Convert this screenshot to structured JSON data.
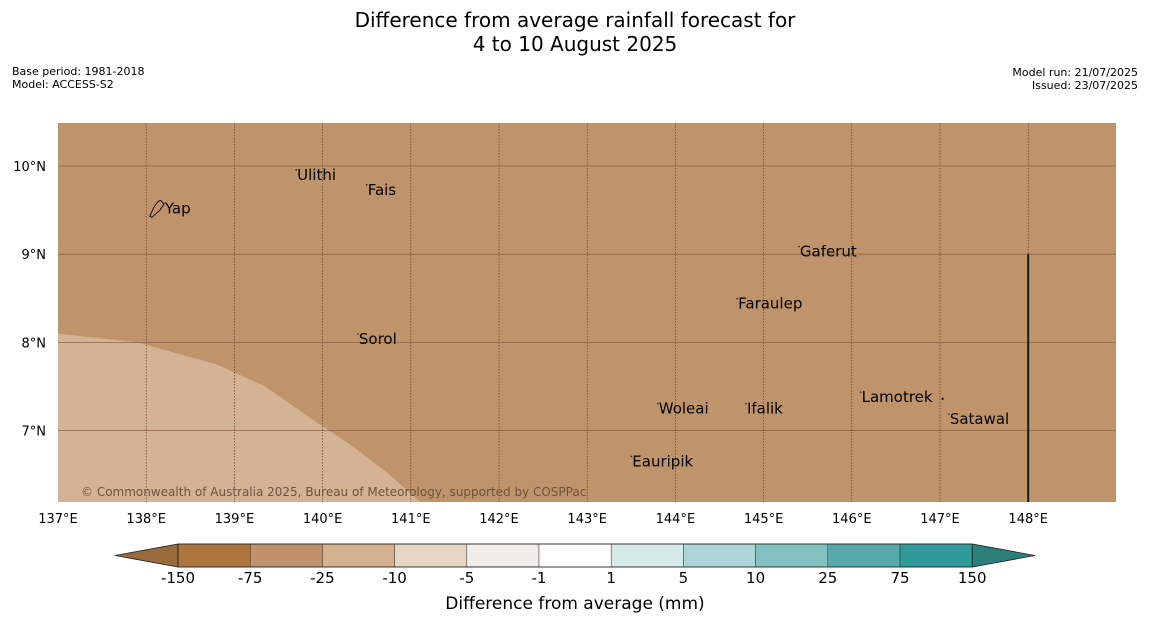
{
  "title": {
    "line1": "Difference from average rainfall forecast for",
    "line2": "4 to 10 August 2025"
  },
  "meta_left": {
    "base_period": "Base period: 1981-2018",
    "model": "Model: ACCESS-S2"
  },
  "meta_right": {
    "model_run": "Model run: 21/07/2025",
    "issued": "Issued: 23/07/2025"
  },
  "map": {
    "lon_range": [
      137,
      149
    ],
    "lat_range": [
      6.2,
      10.5
    ],
    "lon_ticks": [
      {
        "value": 137,
        "label": "137°E"
      },
      {
        "value": 138,
        "label": "138°E"
      },
      {
        "value": 139,
        "label": "139°E"
      },
      {
        "value": 140,
        "label": "140°E"
      },
      {
        "value": 141,
        "label": "141°E"
      },
      {
        "value": 142,
        "label": "142°E"
      },
      {
        "value": 143,
        "label": "143°E"
      },
      {
        "value": 144,
        "label": "144°E"
      },
      {
        "value": 145,
        "label": "145°E"
      },
      {
        "value": 146,
        "label": "146°E"
      },
      {
        "value": 147,
        "label": "147°E"
      },
      {
        "value": 148,
        "label": "148°E"
      }
    ],
    "lat_ticks": [
      {
        "value": 10,
        "label": "10°N"
      },
      {
        "value": 9,
        "label": "9°N"
      },
      {
        "value": 8,
        "label": "8°N"
      },
      {
        "value": 7,
        "label": "7°N"
      }
    ],
    "places": [
      {
        "name": "Yap",
        "lon": 138.2,
        "lat": 9.52
      },
      {
        "name": "Ulithi",
        "lon": 139.7,
        "lat": 9.9
      },
      {
        "name": "Fais",
        "lon": 140.5,
        "lat": 9.73
      },
      {
        "name": "Gaferut",
        "lon": 145.4,
        "lat": 9.03
      },
      {
        "name": "Faraulep",
        "lon": 144.7,
        "lat": 8.44
      },
      {
        "name": "Sorol",
        "lon": 140.4,
        "lat": 8.04
      },
      {
        "name": "Lamotrek",
        "lon": 146.1,
        "lat": 7.38
      },
      {
        "name": "Woleai",
        "lon": 143.8,
        "lat": 7.25
      },
      {
        "name": "Ifalik",
        "lon": 144.8,
        "lat": 7.25
      },
      {
        "name": "Satawal",
        "lon": 147.1,
        "lat": 7.13
      },
      {
        "name": "Eauripik",
        "lon": 143.5,
        "lat": 6.65
      }
    ],
    "background_color": "#c0946a",
    "wetter_region_color": "#d4b294",
    "wetter_region_boundary": [
      {
        "lon": 137.0,
        "lat": 8.1
      },
      {
        "lon": 137.9,
        "lat": 8.0
      },
      {
        "lon": 138.8,
        "lat": 7.75
      },
      {
        "lon": 139.35,
        "lat": 7.5
      },
      {
        "lon": 139.85,
        "lat": 7.15
      },
      {
        "lon": 140.3,
        "lat": 6.85
      },
      {
        "lon": 140.7,
        "lat": 6.55
      },
      {
        "lon": 141.1,
        "lat": 6.2
      }
    ],
    "copyright": "© Commonwealth of Australia 2025, Bureau of Meteorology, supported by COSPPac"
  },
  "colorbar": {
    "label": "Difference from average (mm)",
    "tick_labels": [
      "-150",
      "-75",
      "-25",
      "-10",
      "-5",
      "-1",
      "1",
      "5",
      "10",
      "25",
      "75",
      "150"
    ],
    "low_extend_color": "#9b6a3a",
    "high_extend_color": "#2e7e7c",
    "colors": [
      "#ad763e",
      "#c0916a",
      "#d4b08e",
      "#e6d5c4",
      "#f1ede8",
      "#ffffff",
      "#d5e9e9",
      "#acd5d6",
      "#83c1c1",
      "#57aaab",
      "#30999a"
    ]
  }
}
